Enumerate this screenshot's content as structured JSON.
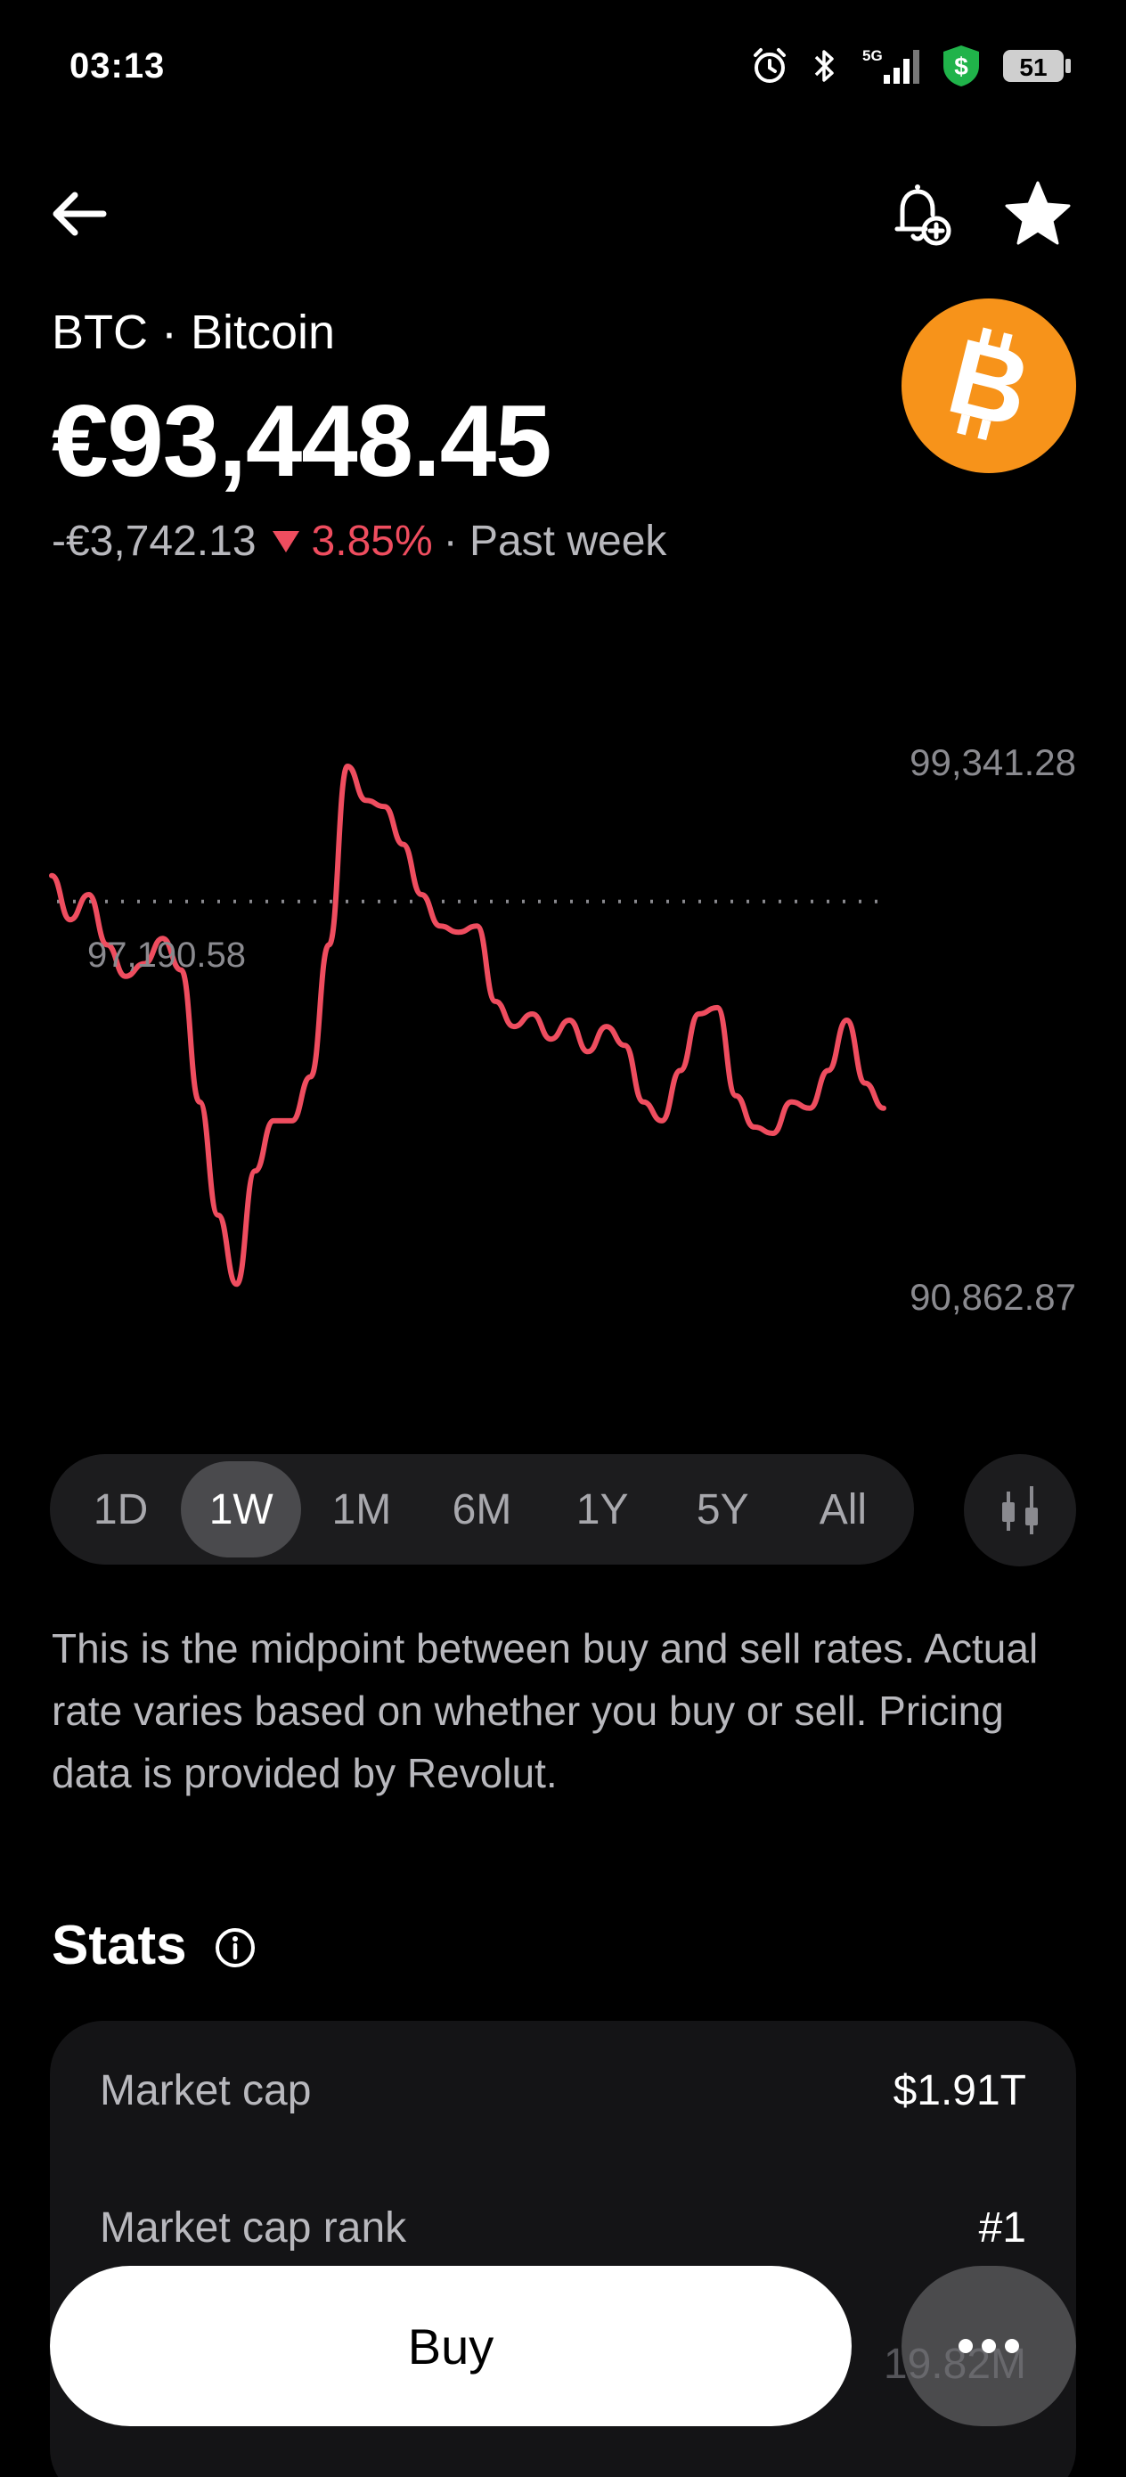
{
  "status_bar": {
    "time": "03:13",
    "network": "5G",
    "battery": "51",
    "icons": [
      "alarm-icon",
      "bluetooth-icon",
      "cellular-5g-icon",
      "money-shield-icon",
      "battery-icon"
    ]
  },
  "nav": {
    "icons": [
      "back-arrow-icon",
      "bell-plus-icon",
      "star-icon"
    ]
  },
  "asset": {
    "name": "BTC · Bitcoin",
    "price": "€93,448.45",
    "change_amount": "-€3,742.13",
    "change_percent": "3.85%",
    "period": "· Past week",
    "logo_icon": "bitcoin-logo-icon"
  },
  "chart_data": {
    "type": "line",
    "series": [
      {
        "values": [
          97600,
          96900,
          97300,
          96500,
          96000,
          96200,
          96600,
          96100,
          94000,
          92200,
          91100,
          92900,
          93700,
          93700,
          94400,
          96500,
          99341,
          98800,
          98700,
          98100,
          97300,
          96800,
          96700,
          96800,
          95600,
          95200,
          95400,
          95000,
          95300,
          94800,
          95200,
          94900,
          94000,
          93700,
          94500,
          95400,
          95500,
          94100,
          93600,
          93500,
          94000,
          93900,
          94500,
          95300,
          94300,
          93900
        ]
      }
    ],
    "y_high_label": "99,341.28",
    "y_low_label": "90,862.87",
    "reference_label": "97,190.58",
    "reference_value": 97190.58,
    "ylim": [
      90862.87,
      99341.28
    ],
    "line_color": "#ef4d5f"
  },
  "ranges": {
    "tabs": [
      "1D",
      "1W",
      "1M",
      "6M",
      "1Y",
      "5Y",
      "All"
    ],
    "selected": "1W",
    "chart_type_icon": "candlestick-icon"
  },
  "disclaimer": "This is the midpoint between buy and sell rates. Actual rate varies based on whether you buy or sell. Pricing data is provided by Revolut.",
  "stats": {
    "title": "Stats",
    "info_icon": "info-icon",
    "rows": [
      {
        "label": "Market cap",
        "value": "$1.91T"
      },
      {
        "label": "Market cap rank",
        "value": "#1"
      },
      {
        "label": "",
        "value": "19.82M"
      }
    ]
  },
  "actions": {
    "buy_label": "Buy",
    "more_icon": "more-dots-icon"
  },
  "colors": {
    "background": "#000000",
    "negative": "#ef4d5f",
    "bitcoin": "#f7931a",
    "card": "#141416"
  }
}
